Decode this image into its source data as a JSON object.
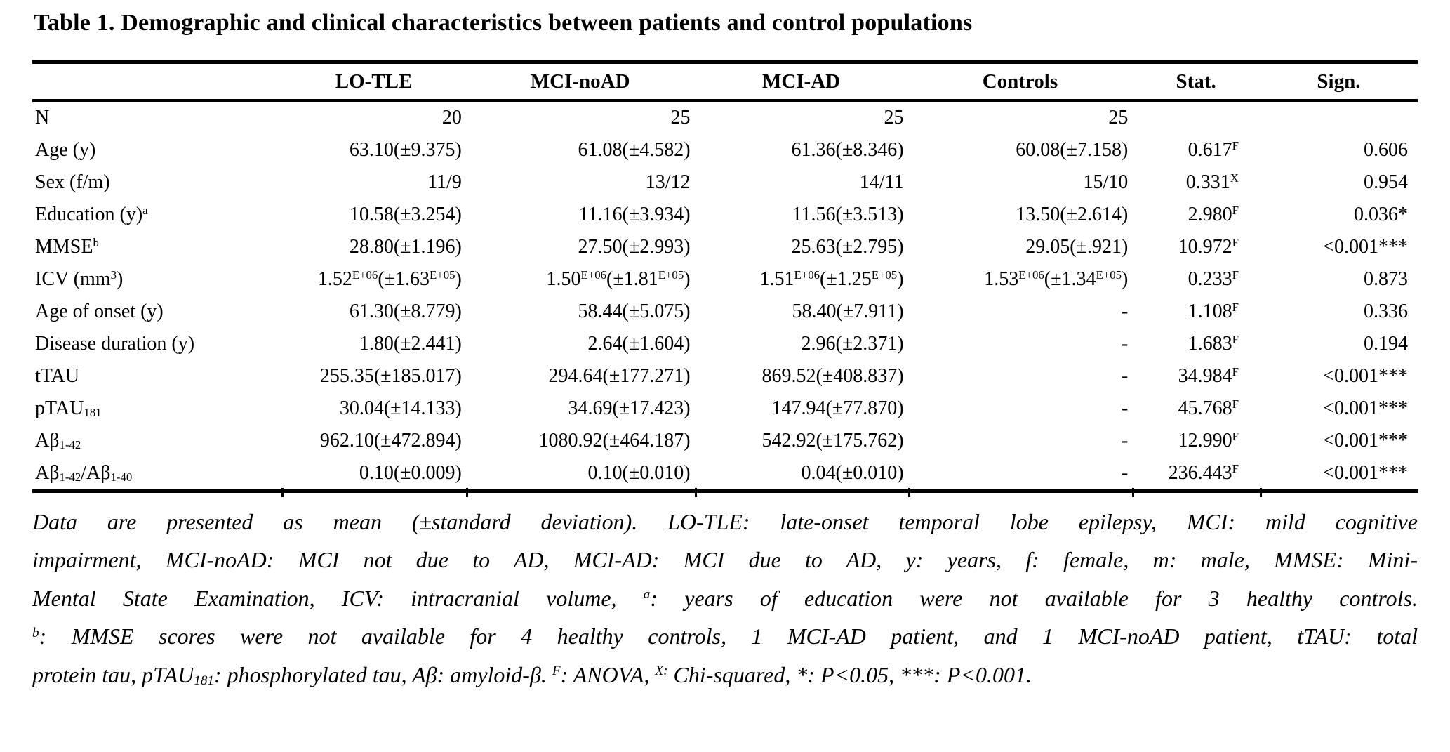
{
  "page": {
    "background": "#ffffff",
    "text_color": "#000000",
    "rule_color": "#000000"
  },
  "title": "Table 1. Demographic and clinical characteristics between patients and control populations",
  "table": {
    "headers": [
      "",
      "LO-TLE",
      "MCI-noAD",
      "MCI-AD",
      "Controls",
      "Stat.",
      "Sign."
    ],
    "rows": [
      {
        "label": "N",
        "values": [
          "20",
          "25",
          "25",
          "25",
          "",
          ""
        ]
      },
      {
        "label": "Age (y)",
        "values": [
          "63.10(±9.375)",
          "61.08(±4.582)",
          "61.36(±8.346)",
          "60.08(±7.158)",
          "0.617^{F}",
          "0.606"
        ]
      },
      {
        "label": "Sex (f/m)",
        "values": [
          "11/9",
          "13/12",
          "14/11",
          "15/10",
          "0.331^{X}",
          "0.954"
        ]
      },
      {
        "label": "Education (y)^{a}",
        "values": [
          "10.58(±3.254)",
          "11.16(±3.934)",
          "11.56(±3.513)",
          "13.50(±2.614)",
          "2.980^{F}",
          "0.036*"
        ]
      },
      {
        "label": "MMSE^{b}",
        "values": [
          "28.80(±1.196)",
          "27.50(±2.993)",
          "25.63(±2.795)",
          "29.05(±.921)",
          "10.972^{F}",
          "<0.001***"
        ]
      },
      {
        "label": "ICV (mm^{3})",
        "values": [
          "1.52^{E+06}(±1.63^{E+05})",
          "1.50^{E+06}(±1.81^{E+05})",
          "1.51^{E+06}(±1.25^{E+05})",
          "1.53^{E+06}(±1.34^{E+05})",
          "0.233^{F}",
          "0.873"
        ]
      },
      {
        "label": "Age of onset (y)",
        "values": [
          "61.30(±8.779)",
          "58.44(±5.075)",
          "58.40(±7.911)",
          "-",
          "1.108^{F}",
          "0.336"
        ]
      },
      {
        "label": "Disease duration (y)",
        "values": [
          "1.80(±2.441)",
          "2.64(±1.604)",
          "2.96(±2.371)",
          "-",
          "1.683^{F}",
          "0.194"
        ]
      },
      {
        "label": "tTAU",
        "values": [
          "255.35(±185.017)",
          "294.64(±177.271)",
          "869.52(±408.837)",
          "-",
          "34.984^{F}",
          "<0.001***"
        ]
      },
      {
        "label": "pTAU_{181}",
        "values": [
          "30.04(±14.133)",
          "34.69(±17.423)",
          "147.94(±77.870)",
          "-",
          "45.768^{F}",
          "<0.001***"
        ]
      },
      {
        "label": "Aβ_{1-42}",
        "values": [
          "962.10(±472.894)",
          "1080.92(±464.187)",
          "542.92(±175.762)",
          "-",
          "12.990^{F}",
          "<0.001***"
        ]
      },
      {
        "label": "Aβ_{1-42}/Aβ_{1-40}",
        "values": [
          "0.10(±0.009)",
          "0.10(±0.010)",
          "0.04(±0.010)",
          "-",
          "236.443^{F}",
          "<0.001***"
        ]
      }
    ]
  },
  "footnote_lines": [
    "Data are presented as mean (±standard deviation). LO-TLE: late-onset temporal lobe epilepsy, MCI: mild cognitive",
    "impairment, MCI-noAD: MCI not due to AD, MCI-AD: MCI due to AD, y: years, f: female, m: male, MMSE: Mini-",
    "Mental State Examination, ICV: intracranial volume, ^{a}: years of education were not available for 3 healthy controls.",
    "^{b}: MMSE scores were not available for 4 healthy controls, 1 MCI-AD patient, and 1 MCI-noAD patient, tTAU: total",
    "protein tau, pTAU_{181}: phosphorylated tau, Aβ: amyloid-β. ^{F}: ANOVA, ^{X:} Chi-squared, *: P<0.05, ***: P<0.001."
  ]
}
